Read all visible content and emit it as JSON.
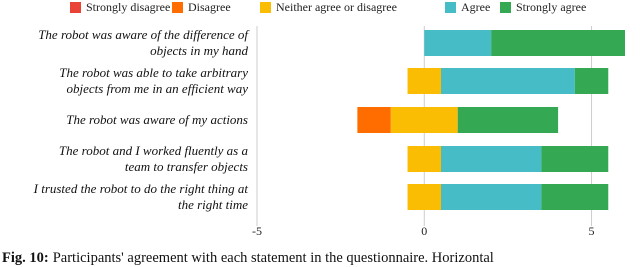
{
  "chart_data": {
    "type": "diverging-bar",
    "categories": [
      "The robot was aware of the difference of\nobjects in my hand",
      "The robot was able to take arbitrary\nobjects from me in an efficient way",
      "The robot was aware of my actions",
      "The robot and I worked fluently as a\nteam to transfer objects",
      "I trusted the robot to do the right thing at\nthe right time"
    ],
    "series": [
      {
        "name": "Strongly disagree",
        "color": "#ea4335",
        "values": [
          0,
          0,
          0,
          0,
          0
        ]
      },
      {
        "name": "Disagree",
        "color": "#ff6d01",
        "values": [
          0,
          0,
          1,
          0,
          0
        ]
      },
      {
        "name": "Neither agree or disagree",
        "color": "#fbbc04",
        "values": [
          0,
          1,
          2,
          1,
          1
        ]
      },
      {
        "name": "Agree",
        "color": "#46bdc6",
        "values": [
          2,
          4,
          0,
          3,
          3
        ]
      },
      {
        "name": "Strongly agree",
        "color": "#34a853",
        "values": [
          4,
          1,
          3,
          2,
          2
        ]
      }
    ],
    "xlim": [
      -5,
      6
    ],
    "xticks": [
      -5,
      0,
      5
    ],
    "grid": true,
    "legend": "top"
  },
  "caption": {
    "label": "Fig. 10:",
    "text": "Participants' agreement with each statement in the questionnaire. Horizontal"
  }
}
